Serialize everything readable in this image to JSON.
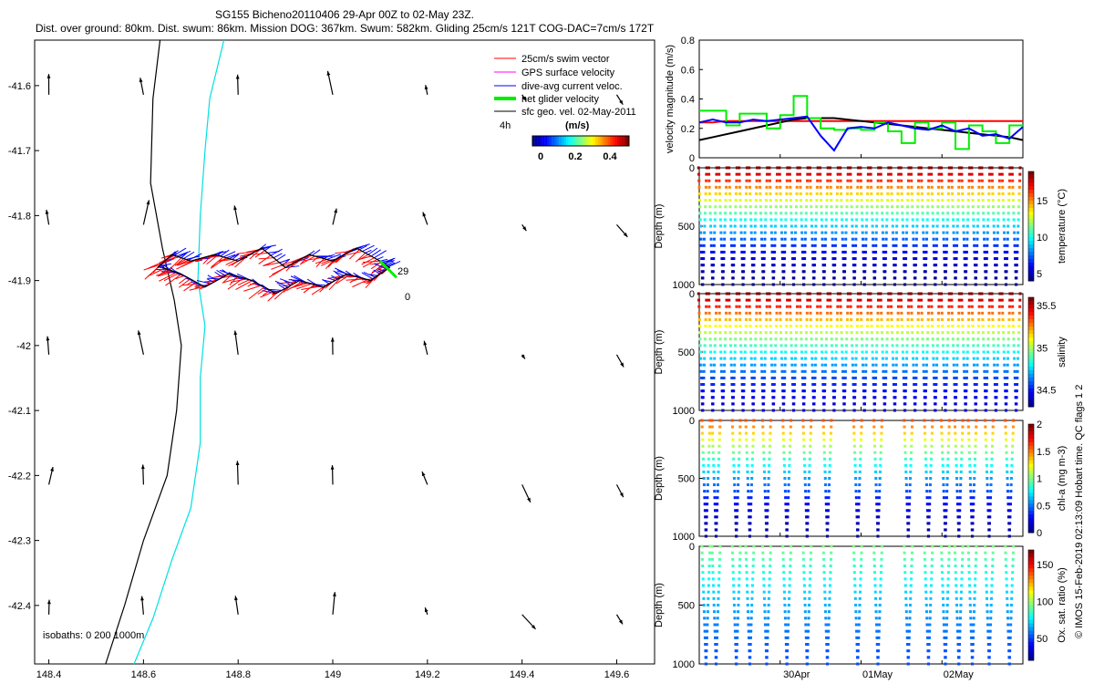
{
  "title_line1": "SG155 Bicheno20110406 29-Apr 00Z to 02-May 23Z.",
  "title_line2": "Dist. over ground: 80km. Dist. swum: 86km. Mission DOG: 367km. Swum: 582km. Gliding 25cm/s 121T COG-DAC=7cm/s 172T",
  "credit": "© IMOS 15-Feb-2019 02:13:09 Hobart time. QC flags 1  2",
  "colors": {
    "swim": "#ff0000",
    "gps": "#ff00ff",
    "dac": "#0000ff",
    "net": "#00ee00",
    "sfc": "#000000",
    "isobath200": "#000000",
    "isobath1000": "#00e0e0",
    "cmap": [
      "#00008f",
      "#0000ff",
      "#0080ff",
      "#00ffff",
      "#80ff80",
      "#ffff00",
      "#ff8000",
      "#ff0000",
      "#800000"
    ]
  },
  "map": {
    "xticks": [
      "148.4",
      "148.6",
      "148.8",
      "149",
      "149.2",
      "149.4",
      "149.6"
    ],
    "yticks": [
      "-41.6",
      "-41.7",
      "-41.8",
      "-41.9",
      "-42",
      "-42.1",
      "-42.2",
      "-42.3",
      "-42.4"
    ],
    "legend": [
      "25cm/s swim vector",
      "GPS surface velocity",
      "dive-avg current veloc.",
      "net glider velocity",
      "sfc geo. vel. 02-May-2011"
    ],
    "time_scale": "4h",
    "colorbar_title": "(m/s)",
    "colorbar_ticks": [
      "0",
      "0.2",
      "0.4"
    ],
    "isobath_note": "isobaths: 0   200  1000m",
    "track_label": "29",
    "track_label_end": "0"
  },
  "chart_data": [
    {
      "type": "map-vectors",
      "xlim": [
        148.37,
        149.68
      ],
      "ylim": [
        -42.49,
        -41.53
      ],
      "track": {
        "lon": [
          148.63,
          148.66,
          148.7,
          148.75,
          148.8,
          148.85,
          148.9,
          148.95,
          149.0,
          149.05,
          149.1,
          149.12,
          149.08,
          149.03,
          148.98,
          148.93,
          148.88,
          148.83,
          148.78,
          148.73,
          148.68,
          148.64
        ],
        "lat": [
          -41.88,
          -41.86,
          -41.87,
          -41.86,
          -41.87,
          -41.85,
          -41.88,
          -41.86,
          -41.87,
          -41.85,
          -41.87,
          -41.88,
          -41.9,
          -41.89,
          -41.91,
          -41.9,
          -41.92,
          -41.9,
          -41.89,
          -41.91,
          -41.89,
          -41.88
        ]
      },
      "sfc_vectors": {
        "lon": [
          148.4,
          148.6,
          148.8,
          149.0,
          149.2,
          149.4,
          149.6
        ],
        "lat": [
          -41.6,
          -41.8,
          -42.0,
          -42.2,
          -42.4
        ]
      }
    },
    {
      "type": "line",
      "ylabel": "velocity magnitude (m/s)",
      "ylim": [
        0,
        0.8
      ],
      "yticks": [
        "0",
        "0.2",
        "0.4",
        "0.6",
        "0.8"
      ],
      "x": [
        0,
        4,
        8,
        12,
        16,
        20,
        24,
        28,
        32,
        36,
        40,
        44,
        48,
        52,
        56,
        60,
        64,
        68,
        72,
        76,
        80,
        84,
        88,
        92,
        96
      ],
      "series": [
        {
          "color": "#ff0000",
          "values": [
            0.24,
            0.24,
            0.25,
            0.25,
            0.25,
            0.25,
            0.25,
            0.25,
            0.25,
            0.25,
            0.25,
            0.25,
            0.25,
            0.25,
            0.25,
            0.25,
            0.25,
            0.25,
            0.25,
            0.25,
            0.25,
            0.25,
            0.25,
            0.25,
            0.25
          ]
        },
        {
          "color": "#000000",
          "values": [
            0.12,
            0.14,
            0.16,
            0.18,
            0.2,
            0.22,
            0.24,
            0.26,
            0.27,
            0.27,
            0.27,
            0.26,
            0.25,
            0.24,
            0.23,
            0.22,
            0.21,
            0.2,
            0.19,
            0.18,
            0.17,
            0.16,
            0.15,
            0.14,
            0.12
          ]
        },
        {
          "color": "#00ee00",
          "values": [
            0.32,
            0.32,
            0.22,
            0.3,
            0.3,
            0.2,
            0.29,
            0.42,
            0.27,
            0.2,
            0.19,
            0.2,
            0.19,
            0.24,
            0.18,
            0.1,
            0.24,
            0.2,
            0.24,
            0.06,
            0.22,
            0.18,
            0.1,
            0.22,
            0.2
          ]
        },
        {
          "color": "#0000ff",
          "values": [
            0.24,
            0.26,
            0.24,
            0.24,
            0.26,
            0.25,
            0.26,
            0.27,
            0.28,
            0.15,
            0.05,
            0.2,
            0.21,
            0.2,
            0.24,
            0.22,
            0.2,
            0.19,
            0.22,
            0.18,
            0.2,
            0.15,
            0.16,
            0.13,
            0.21
          ]
        }
      ]
    },
    {
      "type": "scatter-profile",
      "ylabel": "Depth (m)",
      "clabel": "temperature (°C)",
      "ylim": [
        0,
        1000
      ],
      "yticks": [
        "0",
        "500",
        "1000"
      ],
      "cticks": [
        "5",
        "10",
        "15"
      ],
      "crange": [
        4,
        19
      ],
      "surface": 19,
      "bottom": 4,
      "dives": [
        1,
        4,
        7,
        10,
        13,
        16,
        19,
        22,
        25,
        28,
        31,
        34,
        37,
        40,
        43,
        46,
        49,
        52,
        55,
        58,
        61,
        64,
        67,
        70,
        73,
        76,
        79,
        82,
        85,
        88,
        91,
        94
      ],
      "maxdepth": 1000
    },
    {
      "type": "scatter-profile",
      "ylabel": "Depth (m)",
      "clabel": "salinity",
      "ylim": [
        0,
        1000
      ],
      "yticks": [
        "0",
        "500",
        "1000"
      ],
      "cticks": [
        "34.5",
        "35",
        "35.5"
      ],
      "crange": [
        34.3,
        35.6
      ],
      "surface": 35.6,
      "bottom": 34.4,
      "dives": [
        1,
        4,
        7,
        10,
        13,
        16,
        19,
        22,
        25,
        28,
        31,
        34,
        37,
        40,
        43,
        46,
        49,
        52,
        55,
        58,
        61,
        64,
        67,
        70,
        73,
        76,
        79,
        82,
        85,
        88,
        91,
        94
      ],
      "maxdepth": 1000
    },
    {
      "type": "scatter-profile",
      "ylabel": "Depth (m)",
      "clabel": "chl-a (mg m-3)",
      "ylim": [
        0,
        1000
      ],
      "yticks": [
        "0",
        "500",
        "1000"
      ],
      "cticks": [
        "0",
        "0.5",
        "1",
        "1.5",
        "2"
      ],
      "crange": [
        0,
        2
      ],
      "surface": 1.6,
      "bottom": 0.05,
      "dives": [
        2,
        5,
        11,
        15,
        20,
        26,
        32,
        38,
        47,
        53,
        62,
        68,
        73,
        77,
        81,
        86,
        92
      ],
      "maxdepth": 1000
    },
    {
      "type": "scatter-profile",
      "ylabel": "Depth (m)",
      "clabel": "Ox. sat. ratio (%)",
      "ylim": [
        0,
        1000
      ],
      "yticks": [
        "0",
        "500",
        "1000"
      ],
      "cticks": [
        "50",
        "100",
        "150"
      ],
      "crange": [
        20,
        170
      ],
      "surface": 95,
      "bottom": 50,
      "dives": [
        2,
        5,
        11,
        15,
        20,
        26,
        32,
        38,
        47,
        53,
        62,
        68,
        73,
        77,
        81,
        86,
        92
      ],
      "maxdepth": 1000
    }
  ],
  "time_axis": {
    "labels": [
      "30Apr",
      "01May",
      "02May"
    ],
    "positions": [
      24,
      48,
      72
    ],
    "xlim": [
      0,
      96
    ]
  }
}
